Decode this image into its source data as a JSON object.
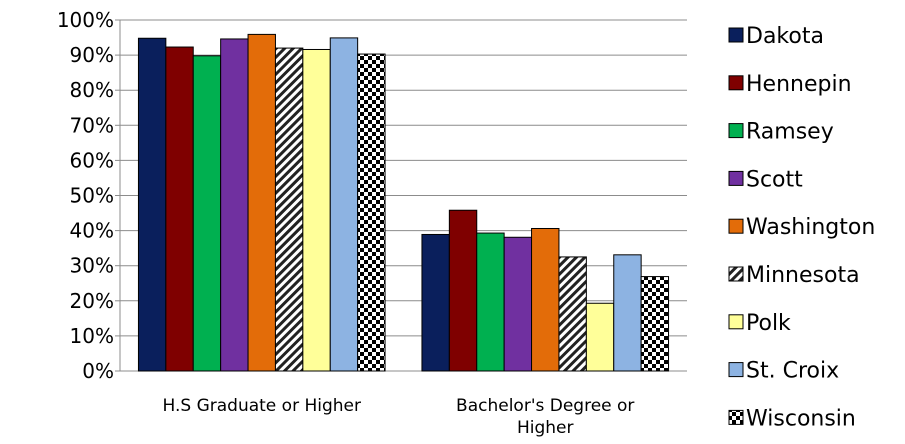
{
  "chart_data": {
    "type": "bar",
    "categories": [
      "H.S Graduate or Higher",
      "Bachelor's Degree or Higher"
    ],
    "y_ticks": [
      "0%",
      "10%",
      "20%",
      "30%",
      "40%",
      "50%",
      "60%",
      "70%",
      "80%",
      "90%",
      "100%"
    ],
    "ylim": [
      0,
      100
    ],
    "grid": true,
    "legend_position": "right",
    "series": [
      {
        "name": "Dakota",
        "values": [
          94.8,
          38.9
        ],
        "color": "#0a1f5c",
        "pattern": "solid"
      },
      {
        "name": "Hennepin",
        "values": [
          92.3,
          45.8
        ],
        "color": "#7f0000",
        "pattern": "solid"
      },
      {
        "name": "Ramsey",
        "values": [
          89.8,
          39.3
        ],
        "color": "#00b050",
        "pattern": "solid"
      },
      {
        "name": "Scott",
        "values": [
          94.6,
          38.1
        ],
        "color": "#7030a0",
        "pattern": "solid"
      },
      {
        "name": "Washington",
        "values": [
          95.9,
          40.6
        ],
        "color": "#e36c09",
        "pattern": "solid"
      },
      {
        "name": "Minnesota",
        "values": [
          92.0,
          32.5
        ],
        "color": "#ffffff",
        "pattern": "diagonal"
      },
      {
        "name": "Polk",
        "values": [
          91.6,
          19.3
        ],
        "color": "#ffff99",
        "pattern": "solid"
      },
      {
        "name": "St. Croix",
        "values": [
          94.9,
          33.1
        ],
        "color": "#8db3e2",
        "pattern": "solid"
      },
      {
        "name": "Wisconsin",
        "values": [
          90.3,
          26.9
        ],
        "color": "#ffffff",
        "pattern": "checker"
      }
    ]
  }
}
